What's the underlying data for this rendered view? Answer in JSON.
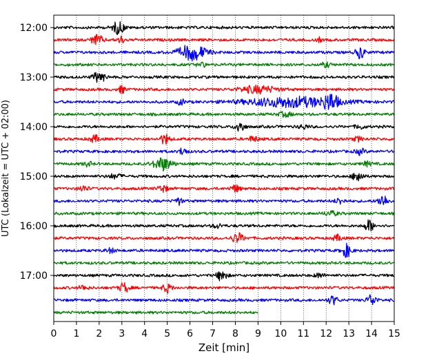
{
  "chart_data": {
    "type": "line",
    "title": "",
    "xlabel": "Zeit  [min]",
    "ylabel": "UTC (Lokalzeit = UTC + 02:00)",
    "xlim": [
      0,
      15
    ],
    "xticks": [
      "0",
      "1",
      "2",
      "3",
      "4",
      "5",
      "6",
      "7",
      "8",
      "9",
      "10",
      "11",
      "12",
      "13",
      "14",
      "15"
    ],
    "yticks": [
      "12:00",
      "13:00",
      "14:00",
      "15:00",
      "16:00",
      "17:00"
    ],
    "grid": "vertical dotted",
    "colors": [
      "#000000",
      "#ff0000",
      "#0000ff",
      "#008000"
    ],
    "trace_minutes": 15,
    "series": [
      {
        "start": "12:00",
        "color": "#000000",
        "end": 15,
        "bursts": [
          [
            2.85,
            9,
            0.25
          ]
        ]
      },
      {
        "start": "12:15",
        "color": "#ff0000",
        "end": 15,
        "bursts": [
          [
            1.9,
            7,
            0.25
          ],
          [
            2.95,
            5,
            0.15
          ],
          [
            11.7,
            3,
            0.1
          ]
        ]
      },
      {
        "start": "12:30",
        "color": "#0000ff",
        "end": 15,
        "bursts": [
          [
            6.1,
            11,
            0.6
          ],
          [
            13.5,
            8,
            0.2
          ]
        ]
      },
      {
        "start": "12:45",
        "color": "#008000",
        "end": 15,
        "bursts": [
          [
            6.5,
            3,
            0.2
          ],
          [
            12.0,
            3,
            0.2
          ]
        ]
      },
      {
        "start": "13:00",
        "color": "#000000",
        "end": 15,
        "bursts": [
          [
            2.0,
            8,
            0.25
          ]
        ]
      },
      {
        "start": "13:15",
        "color": "#ff0000",
        "end": 15,
        "bursts": [
          [
            3.0,
            5,
            0.15
          ],
          [
            9.0,
            5,
            0.8
          ]
        ]
      },
      {
        "start": "13:30",
        "color": "#0000ff",
        "end": 15,
        "bursts": [
          [
            5.6,
            4,
            0.15
          ],
          [
            10.5,
            7,
            2.0
          ],
          [
            12.2,
            10,
            0.3
          ]
        ]
      },
      {
        "start": "13:45",
        "color": "#008000",
        "end": 15,
        "bursts": [
          [
            10.2,
            3,
            0.3
          ]
        ]
      },
      {
        "start": "14:00",
        "color": "#000000",
        "end": 15,
        "bursts": [
          [
            8.2,
            8,
            0.2
          ],
          [
            11.0,
            3,
            0.2
          ],
          [
            13.5,
            3,
            0.2
          ]
        ]
      },
      {
        "start": "14:15",
        "color": "#ff0000",
        "end": 15,
        "bursts": [
          [
            1.8,
            5,
            0.2
          ],
          [
            4.9,
            7,
            0.2
          ],
          [
            8.8,
            4,
            0.2
          ],
          [
            13.4,
            3,
            0.2
          ]
        ]
      },
      {
        "start": "14:30",
        "color": "#0000ff",
        "end": 15,
        "bursts": [
          [
            5.7,
            6,
            0.15
          ],
          [
            13.5,
            4,
            0.2
          ]
        ]
      },
      {
        "start": "14:45",
        "color": "#008000",
        "end": 15,
        "bursts": [
          [
            4.8,
            9,
            0.4
          ],
          [
            1.5,
            3,
            0.2
          ],
          [
            13.8,
            3,
            0.2
          ]
        ]
      },
      {
        "start": "15:00",
        "color": "#000000",
        "end": 15,
        "bursts": [
          [
            13.4,
            9,
            0.2
          ],
          [
            2.7,
            3,
            0.3
          ]
        ]
      },
      {
        "start": "15:15",
        "color": "#ff0000",
        "end": 15,
        "bursts": [
          [
            1.3,
            4,
            0.2
          ],
          [
            4.8,
            5,
            0.2
          ],
          [
            8.0,
            5,
            0.2
          ]
        ]
      },
      {
        "start": "15:30",
        "color": "#0000ff",
        "end": 15,
        "bursts": [
          [
            5.5,
            5,
            0.15
          ],
          [
            12.6,
            4,
            0.2
          ],
          [
            14.5,
            9,
            0.2
          ]
        ]
      },
      {
        "start": "15:45",
        "color": "#008000",
        "end": 15,
        "bursts": [
          [
            12.2,
            3,
            0.3
          ]
        ]
      },
      {
        "start": "16:00",
        "color": "#000000",
        "end": 15,
        "bursts": [
          [
            13.9,
            8,
            0.2
          ],
          [
            7.2,
            3,
            0.2
          ]
        ]
      },
      {
        "start": "16:15",
        "color": "#ff0000",
        "end": 15,
        "bursts": [
          [
            8.1,
            7,
            0.25
          ],
          [
            12.5,
            4,
            0.2
          ]
        ]
      },
      {
        "start": "16:30",
        "color": "#0000ff",
        "end": 15,
        "bursts": [
          [
            12.9,
            9,
            0.2
          ],
          [
            2.5,
            3,
            0.2
          ]
        ]
      },
      {
        "start": "16:45",
        "color": "#008000",
        "end": 15,
        "bursts": []
      },
      {
        "start": "17:00",
        "color": "#000000",
        "end": 15,
        "bursts": [
          [
            7.4,
            8,
            0.2
          ],
          [
            11.7,
            3,
            0.2
          ]
        ]
      },
      {
        "start": "17:15",
        "color": "#ff0000",
        "end": 15,
        "bursts": [
          [
            3.1,
            7,
            0.2
          ],
          [
            5.0,
            6,
            0.2
          ],
          [
            1.3,
            3,
            0.2
          ]
        ]
      },
      {
        "start": "17:30",
        "color": "#0000ff",
        "end": 15,
        "bursts": [
          [
            12.3,
            6,
            0.2
          ],
          [
            14.0,
            8,
            0.2
          ]
        ]
      },
      {
        "start": "17:45",
        "color": "#008000",
        "end": 9,
        "bursts": []
      }
    ]
  }
}
